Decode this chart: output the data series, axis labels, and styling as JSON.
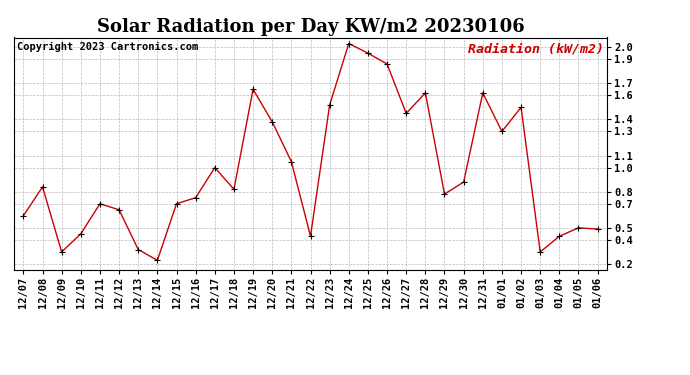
{
  "title": "Solar Radiation per Day KW/m2 20230106",
  "copyright": "Copyright 2023 Cartronics.com",
  "legend_label": "Radiation (kW/m2)",
  "dates": [
    "12/07",
    "12/08",
    "12/09",
    "12/10",
    "12/11",
    "12/12",
    "12/13",
    "12/14",
    "12/15",
    "12/16",
    "12/17",
    "12/18",
    "12/19",
    "12/20",
    "12/21",
    "12/22",
    "12/23",
    "12/24",
    "12/25",
    "12/26",
    "12/27",
    "12/28",
    "12/29",
    "12/30",
    "12/31",
    "01/01",
    "01/02",
    "01/03",
    "01/04",
    "01/05",
    "01/06"
  ],
  "values": [
    0.6,
    0.84,
    0.3,
    0.45,
    0.7,
    0.65,
    0.32,
    0.23,
    0.7,
    0.75,
    1.0,
    0.82,
    1.65,
    1.38,
    1.05,
    0.43,
    1.52,
    2.03,
    1.95,
    1.86,
    1.45,
    1.62,
    0.78,
    0.88,
    1.62,
    1.3,
    1.5,
    0.3,
    0.43,
    0.5,
    0.49
  ],
  "line_color": "#cc0000",
  "marker_color": "#000000",
  "grid_color": "#bbbbbb",
  "bg_color": "#ffffff",
  "ylim": [
    0.15,
    2.08
  ],
  "yticks": [
    0.2,
    0.4,
    0.5,
    0.7,
    0.8,
    1.0,
    1.1,
    1.3,
    1.4,
    1.6,
    1.7,
    1.9,
    2.0
  ],
  "title_fontsize": 13,
  "copyright_fontsize": 7.5,
  "legend_fontsize": 9.5,
  "tick_fontsize": 7.5
}
